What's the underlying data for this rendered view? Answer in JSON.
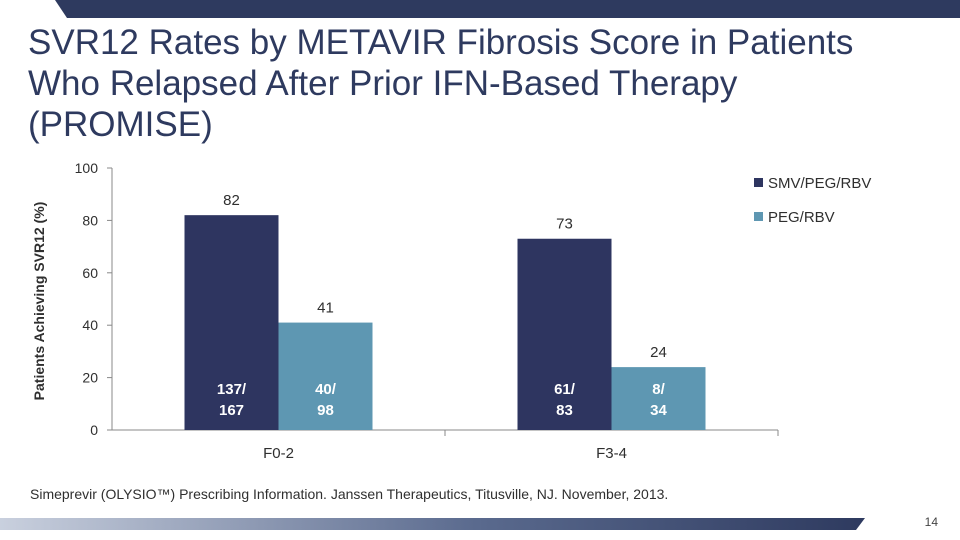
{
  "slide": {
    "title": "SVR12 Rates by METAVIR Fibrosis Score in Patients Who Relapsed After Prior IFN-Based Therapy (PROMISE)",
    "footnote": "Simeprevir (OLYSIO™) Prescribing Information. Janssen Therapeutics, Titusville, NJ. November, 2013.",
    "page_number": "14"
  },
  "colors": {
    "series1": "#2e3560",
    "series2": "#5e97b2",
    "stripe": "#2e3a5f"
  },
  "chart_data": {
    "type": "bar",
    "title": "",
    "xlabel": "",
    "ylabel": "Patients Achieving SVR12 (%)",
    "ylim": [
      0,
      100
    ],
    "yticks": [
      "0",
      "20",
      "40",
      "60",
      "80",
      "100"
    ],
    "categories": [
      "F0-2",
      "F3-4"
    ],
    "legend_position": "top-right",
    "series": [
      {
        "name": "SMV/PEG/RBV",
        "values": [
          82,
          73
        ],
        "labels": [
          "82",
          "73"
        ],
        "inner_labels": [
          [
            "137/",
            "167"
          ],
          [
            "61/",
            "83"
          ]
        ]
      },
      {
        "name": "PEG/RBV",
        "values": [
          41,
          24
        ],
        "labels": [
          "41",
          "24"
        ],
        "inner_labels": [
          [
            "40/",
            "98"
          ],
          [
            "8/",
            "34"
          ]
        ]
      }
    ]
  }
}
